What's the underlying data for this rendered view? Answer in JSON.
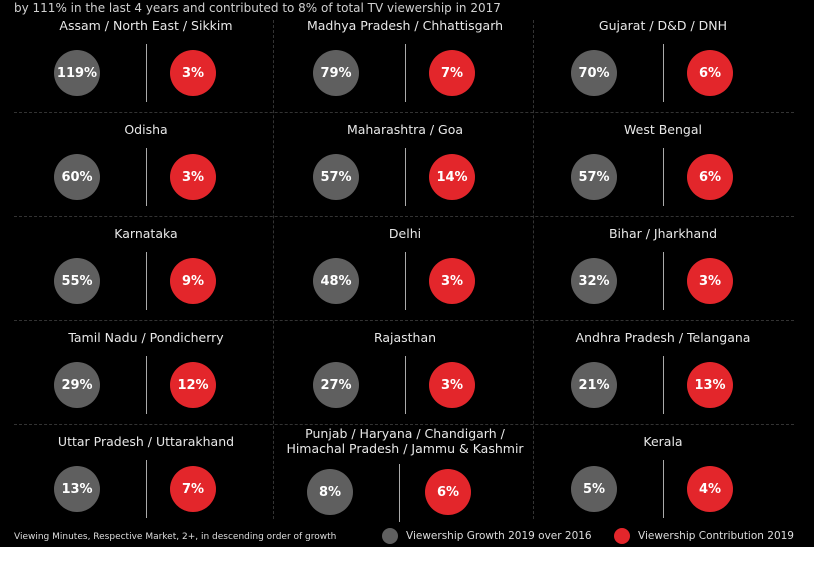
{
  "top_text": "by 111% in the last 4 years and contributed to 8% of total TV viewership in 2017",
  "chart_data": {
    "type": "table",
    "series_names": [
      "Viewership Growth 2019 over 2016",
      "Viewership Contribution 2019"
    ],
    "regions": [
      {
        "name": "Assam / North East / Sikkim",
        "growth": "119%",
        "contribution": "3%"
      },
      {
        "name": "Madhya Pradesh / Chhattisgarh",
        "growth": "79%",
        "contribution": "7%"
      },
      {
        "name": "Gujarat / D&D / DNH",
        "growth": "70%",
        "contribution": "6%"
      },
      {
        "name": "Odisha",
        "growth": "60%",
        "contribution": "3%"
      },
      {
        "name": "Maharashtra / Goa",
        "growth": "57%",
        "contribution": "14%"
      },
      {
        "name": "West Bengal",
        "growth": "57%",
        "contribution": "6%"
      },
      {
        "name": "Karnataka",
        "growth": "55%",
        "contribution": "9%"
      },
      {
        "name": "Delhi",
        "growth": "48%",
        "contribution": "3%"
      },
      {
        "name": "Bihar / Jharkhand",
        "growth": "32%",
        "contribution": "3%"
      },
      {
        "name": "Tamil Nadu / Pondicherry",
        "growth": "29%",
        "contribution": "12%"
      },
      {
        "name": "Rajasthan",
        "growth": "27%",
        "contribution": "3%"
      },
      {
        "name": "Andhra Pradesh / Telangana",
        "growth": "21%",
        "contribution": "13%"
      },
      {
        "name": "Uttar Pradesh / Uttarakhand",
        "growth": "13%",
        "contribution": "7%"
      },
      {
        "name": "Punjab / Haryana / Chandigarh / Himachal Pradesh / Jammu & Kashmir",
        "growth": "8%",
        "contribution": "6%"
      },
      {
        "name": "Kerala",
        "growth": "5%",
        "contribution": "4%"
      }
    ]
  },
  "footnote": "Viewing Minutes, Respective Market, 2+, in descending order of growth",
  "legend": [
    {
      "label": "Viewership Growth 2019 over 2016",
      "color": "#5f5f5f"
    },
    {
      "label": "Viewership Contribution 2019",
      "color": "#e3262b"
    }
  ]
}
